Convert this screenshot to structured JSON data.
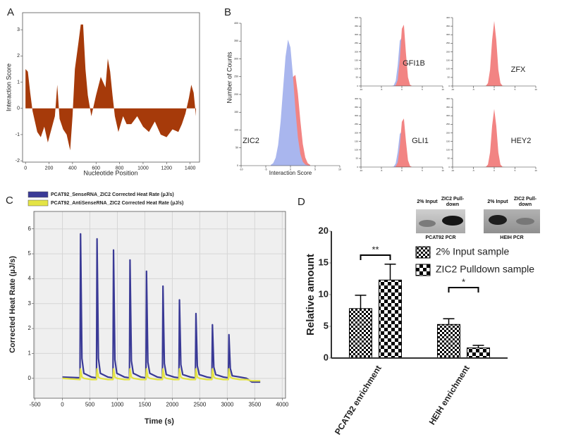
{
  "chart_data": [
    {
      "type": "area",
      "panel": "A",
      "y_label": "Interaction Score",
      "x_label": "Nucleotide Position",
      "color": "#a63a0a",
      "x": [
        0,
        20,
        40,
        60,
        80,
        100,
        130,
        160,
        190,
        220,
        250,
        270,
        290,
        320,
        350,
        380,
        400,
        420,
        450,
        470,
        490,
        510,
        530,
        560,
        600,
        640,
        680,
        700,
        720,
        740,
        760,
        790,
        830,
        860,
        900,
        950,
        1000,
        1050,
        1100,
        1150,
        1200,
        1250,
        1300,
        1330,
        1360,
        1390,
        1410,
        1430,
        1450
      ],
      "values": [
        1.5,
        1.4,
        0.6,
        -0.1,
        -0.5,
        -0.9,
        -1.1,
        -0.7,
        -1.3,
        -0.8,
        -0.3,
        0.9,
        -0.4,
        -0.8,
        -1.0,
        -1.6,
        -0.3,
        1.5,
        2.5,
        3.2,
        3.2,
        1.5,
        0.5,
        -0.3,
        0.5,
        1.2,
        0.8,
        1.9,
        1.4,
        0.5,
        -0.3,
        -0.9,
        -0.3,
        -0.6,
        -0.6,
        -0.3,
        -0.7,
        -0.9,
        -0.5,
        -1.0,
        -1.1,
        -0.8,
        -0.9,
        -0.6,
        -0.2,
        0.4,
        0.9,
        0.6,
        -0.3
      ],
      "xlim": [
        -25,
        1480
      ],
      "ylim": [
        -2.05,
        3.65
      ],
      "xticks": [
        0,
        200,
        400,
        600,
        800,
        1000,
        1200,
        1400
      ],
      "yticks": [
        -2,
        -1,
        0,
        1,
        2,
        3
      ]
    },
    {
      "type": "density",
      "panel": "B",
      "y_label": "Number of Counts",
      "x_label": "Interaction Score",
      "label": "ZIC2",
      "x": [
        -4,
        -3.5,
        -3,
        -2.5,
        -2,
        -1.5,
        -1,
        -0.5,
        0,
        0.5,
        1,
        1.5,
        2,
        2.5,
        3,
        3.5,
        4
      ],
      "series": [
        {
          "color": "#f28483",
          "values": [
            0,
            0,
            0,
            1,
            5,
            19,
            52,
            112,
            188,
            249,
            255,
            203,
            127,
            61,
            23,
            7,
            2
          ]
        },
        {
          "color": "#a9b6ee",
          "values": [
            2,
            7,
            22,
            58,
            123,
            215,
            306,
            354,
            332,
            254,
            158,
            80,
            33,
            11,
            3,
            1,
            0
          ]
        }
      ],
      "xlim": [
        -10,
        10
      ],
      "ylim": [
        0,
        400
      ],
      "xticks": [
        -10,
        -5,
        0,
        5,
        10
      ],
      "yticks": [
        0,
        50,
        100,
        150,
        200,
        250,
        300,
        350,
        400
      ]
    },
    {
      "type": "density",
      "label": "GFI1B",
      "x": [
        -3,
        -2.5,
        -2,
        -1.5,
        -1,
        -0.5,
        0,
        0.5,
        1,
        1.5,
        2,
        2.5,
        3
      ],
      "series": [
        {
          "color": "#a9b6ee",
          "values": [
            0,
            0,
            3,
            29,
            123,
            265,
            284,
            152,
            41,
            5,
            0,
            0,
            0
          ]
        },
        {
          "color": "#f28483",
          "values": [
            0,
            0,
            0,
            4,
            36,
            156,
            335,
            359,
            192,
            51,
            7,
            0,
            0
          ]
        }
      ],
      "xlim": [
        -10,
        10
      ],
      "ylim": [
        0,
        400
      ],
      "xticks": [
        -10,
        -5,
        0,
        5,
        10
      ],
      "yticks": [
        0,
        50,
        100,
        150,
        200,
        250,
        300,
        350,
        400
      ]
    },
    {
      "type": "density",
      "label": "ZFX",
      "x": [
        -3,
        -2.5,
        -2,
        -1.5,
        -1,
        -0.5,
        0,
        0.5,
        1,
        1.5,
        2,
        2.5,
        3
      ],
      "series": [
        {
          "color": "#f28483",
          "values": [
            0,
            0,
            1,
            17,
            95,
            269,
            380,
            269,
            95,
            17,
            1,
            0,
            0
          ]
        }
      ],
      "xlim": [
        -10,
        10
      ],
      "ylim": [
        0,
        400
      ],
      "xticks": [
        -10,
        -5,
        0,
        5,
        10
      ],
      "yticks": [
        0,
        50,
        100,
        150,
        200,
        250,
        300,
        350,
        400
      ]
    },
    {
      "type": "density",
      "label": "GLI1",
      "x": [
        -3,
        -2.5,
        -2,
        -1.5,
        -1,
        -0.5,
        0,
        0.5,
        1,
        1.5,
        2,
        2.5,
        3
      ],
      "series": [
        {
          "color": "#a9b6ee",
          "values": [
            0,
            0,
            2,
            21,
            90,
            194,
            208,
            111,
            30,
            4,
            0,
            0,
            0
          ]
        },
        {
          "color": "#f28483",
          "values": [
            0,
            0,
            0,
            3,
            28,
            123,
            265,
            284,
            152,
            40,
            6,
            0,
            0
          ]
        }
      ],
      "xlim": [
        -10,
        10
      ],
      "ylim": [
        0,
        400
      ],
      "xticks": [
        -10,
        -5,
        0,
        5,
        10
      ],
      "yticks": [
        0,
        50,
        100,
        150,
        200,
        250,
        300,
        350,
        400
      ]
    },
    {
      "type": "density",
      "label": "HEY2",
      "x": [
        -3,
        -2.5,
        -2,
        -1.5,
        -1,
        -0.5,
        0,
        0.5,
        1,
        1.5,
        2,
        2.5,
        3
      ],
      "series": [
        {
          "color": "#f28483",
          "values": [
            0,
            0,
            1,
            15,
            85,
            241,
            340,
            241,
            85,
            15,
            1,
            0,
            0
          ]
        }
      ],
      "xlim": [
        -10,
        10
      ],
      "ylim": [
        0,
        400
      ],
      "xticks": [
        -10,
        -5,
        0,
        5,
        10
      ],
      "yticks": [
        0,
        50,
        100,
        150,
        200,
        250,
        300,
        350,
        400
      ]
    },
    {
      "type": "line",
      "panel": "C",
      "y_label": "Corrected Heat Rate (µJ/s)",
      "x_label": "Time (s)",
      "grid": true,
      "x": [
        0,
        320,
        330,
        355,
        390,
        530,
        620,
        630,
        655,
        690,
        830,
        920,
        930,
        955,
        990,
        1130,
        1220,
        1230,
        1255,
        1290,
        1430,
        1520,
        1530,
        1555,
        1590,
        1730,
        1820,
        1830,
        1855,
        1890,
        2030,
        2120,
        2130,
        2155,
        2190,
        2330,
        2420,
        2430,
        2455,
        2490,
        2630,
        2720,
        2730,
        2755,
        2790,
        2930,
        3020,
        3030,
        3055,
        3090,
        3230,
        3350,
        3450,
        3600
      ],
      "series": [
        {
          "name": "PCAT92_SenseRNA_ZIC2 Corrected Heat Rate (µJ/s)",
          "color": "#3a3a96",
          "values": [
            0.05,
            0.02,
            5.8,
            0.8,
            0.2,
            0.05,
            0.02,
            5.6,
            0.8,
            0.2,
            0.05,
            0.02,
            5.15,
            0.75,
            0.2,
            0.05,
            0.02,
            4.75,
            0.7,
            0.2,
            0.05,
            0.02,
            4.3,
            0.65,
            0.2,
            0.05,
            0.02,
            3.7,
            0.6,
            0.15,
            0.05,
            0.02,
            3.15,
            0.55,
            0.15,
            0.05,
            0.02,
            2.6,
            0.5,
            0.15,
            0.05,
            0.02,
            2.15,
            0.45,
            0.15,
            0.05,
            0.02,
            1.75,
            0.4,
            0.1,
            0.05,
            0.0,
            -0.15,
            -0.15
          ]
        },
        {
          "name": "PCAT92_AntiSenseRNA_ZIC2 Corrected Heat Rate (µJ/s)",
          "color": "#e4e445",
          "values": [
            0.0,
            -0.05,
            0.38,
            0.05,
            0.0,
            -0.05,
            -0.05,
            0.38,
            0.05,
            0.0,
            -0.05,
            -0.05,
            0.38,
            0.05,
            0.0,
            -0.05,
            -0.05,
            0.38,
            0.05,
            0.0,
            -0.05,
            -0.05,
            0.38,
            0.05,
            0.0,
            -0.05,
            -0.05,
            0.38,
            0.05,
            0.0,
            -0.05,
            -0.05,
            0.38,
            0.05,
            0.0,
            -0.05,
            -0.05,
            0.38,
            0.05,
            0.0,
            -0.05,
            -0.05,
            0.38,
            0.05,
            0.0,
            -0.05,
            -0.05,
            0.38,
            0.05,
            0.0,
            -0.05,
            -0.05,
            -0.1,
            -0.1
          ]
        }
      ],
      "xlim": [
        -520,
        4060
      ],
      "ylim": [
        -0.8,
        6.7
      ],
      "xticks": [
        -500,
        0,
        500,
        1000,
        1500,
        2000,
        2500,
        3000,
        3500,
        4000
      ],
      "yticks": [
        0,
        1,
        2,
        3,
        4,
        5,
        6
      ]
    },
    {
      "type": "bar",
      "panel": "D",
      "y_label": "Relative amount",
      "categories": [
        "PCAT92 enrichment",
        "HEIH enrichment"
      ],
      "series": [
        {
          "name": "2% Input sample",
          "color": "#000000",
          "pattern": "small-check",
          "values": [
            7.8,
            5.3
          ],
          "errors": [
            2.1,
            0.9
          ]
        },
        {
          "name": "ZIC2 Pulldown sample",
          "color": "#000000",
          "pattern": "large-check",
          "values": [
            12.3,
            1.6
          ],
          "errors": [
            2.5,
            0.4
          ]
        }
      ],
      "annotations": [
        "**",
        "*"
      ],
      "ylim": [
        0,
        20
      ],
      "yticks": [
        0,
        5,
        10,
        15,
        20
      ]
    }
  ],
  "gels": [
    {
      "lanes": [
        "2% Input",
        "ZIC2 Pull-down"
      ],
      "label": "PCAT92 PCR"
    },
    {
      "lanes": [
        "2% Input",
        "ZIC2 Pull-down"
      ],
      "label": "HEIH PCR"
    }
  ]
}
